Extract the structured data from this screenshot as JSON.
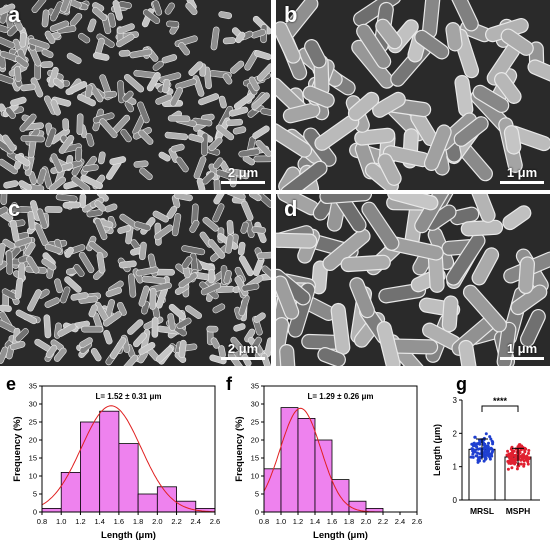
{
  "sem_panels": [
    {
      "letter": "a",
      "scale": "2 μm"
    },
    {
      "letter": "b",
      "scale": "1 μm"
    },
    {
      "letter": "c",
      "scale": "2 μm"
    },
    {
      "letter": "d",
      "scale": "1 μm"
    }
  ],
  "colors": {
    "histogram_fill": "#ee82ee",
    "fit_line": "#e02020",
    "mrsl": "#1f3fd0",
    "msph": "#e02030"
  },
  "chart_data": [
    {
      "panel": "e",
      "type": "bar",
      "annotation": "L= 1.52 ± 0.31 μm",
      "xlabel": "Length (μm)",
      "ylabel": "Frequency (%)",
      "xlim": [
        0.8,
        2.6
      ],
      "ylim": [
        0,
        35
      ],
      "xticks": [
        "0.8",
        "1.0",
        "1.2",
        "1.4",
        "1.6",
        "1.8",
        "2.0",
        "2.2",
        "2.4",
        "2.6"
      ],
      "yticks": [
        "0",
        "5",
        "10",
        "15",
        "20",
        "25",
        "30",
        "35"
      ],
      "bin_starts": [
        0.8,
        1.0,
        1.2,
        1.4,
        1.6,
        1.8,
        2.0,
        2.2,
        2.4
      ],
      "bin_width": 0.2,
      "values": [
        1,
        11,
        25,
        28,
        19,
        5,
        7,
        3,
        1
      ],
      "fit": {
        "mean": 1.52,
        "sd": 0.31,
        "peak": 29.5
      }
    },
    {
      "panel": "f",
      "type": "bar",
      "annotation": "L= 1.29 ± 0.26 μm",
      "xlabel": "Length (μm)",
      "ylabel": "Frequency (%)",
      "xlim": [
        0.8,
        2.6
      ],
      "ylim": [
        0,
        35
      ],
      "xticks": [
        "0.8",
        "1.0",
        "1.2",
        "1.4",
        "1.6",
        "1.8",
        "2.0",
        "2.2",
        "2.4",
        "2.6"
      ],
      "yticks": [
        "0",
        "5",
        "10",
        "15",
        "20",
        "25",
        "30",
        "35"
      ],
      "bin_starts": [
        0.8,
        1.0,
        1.2,
        1.4,
        1.6,
        1.8,
        2.0,
        2.2
      ],
      "bin_width": 0.2,
      "values": [
        12,
        29,
        26,
        20,
        9,
        3,
        1,
        0
      ],
      "fit": {
        "mean": 1.23,
        "sd": 0.24,
        "peak": 28.8
      }
    },
    {
      "panel": "g",
      "type": "scatter",
      "ylabel": "Length (μm)",
      "ylim": [
        0,
        3
      ],
      "yticks": [
        "0",
        "1",
        "2",
        "3"
      ],
      "categories": [
        "MRSL",
        "MSPH"
      ],
      "bar_values": [
        1.52,
        1.29
      ],
      "significance": "****"
    }
  ]
}
